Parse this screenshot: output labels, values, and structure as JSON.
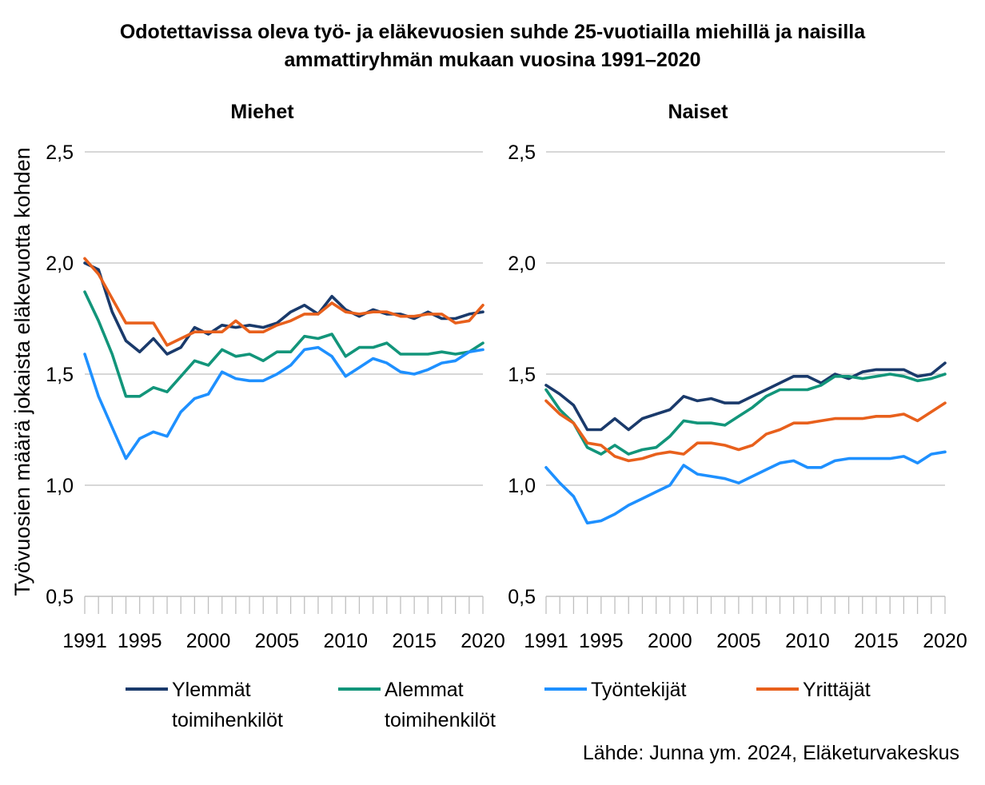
{
  "title_line1": "Odotettavissa oleva työ- ja eläkevuosien suhde 25-vuotiailla miehillä ja naisilla",
  "title_line2": "ammattiryhmän mukaan vuosina 1991–2020",
  "source": "Lähde: Junna ym. 2024, Eläketurvakeskus",
  "legend": [
    {
      "line1": "Ylemmät",
      "line2": "toimihenkilöt",
      "color": "#1a3a6b"
    },
    {
      "line1": "Alemmat",
      "line2": "toimihenkilöt",
      "color": "#12957a"
    },
    {
      "line1": "Työntekijät",
      "line2": "",
      "color": "#1e90ff"
    },
    {
      "line1": "Yrittäjät",
      "line2": "",
      "color": "#e8601c"
    }
  ],
  "chart_data": [
    {
      "type": "line",
      "title": "Miehet",
      "ylabel": "Työvuosien määrä jokaista eläkevuotta kohden",
      "ylim": [
        0.5,
        2.5
      ],
      "yticks": [
        "0,5",
        "1,0",
        "1,5",
        "2,0",
        "2,5"
      ],
      "xticks": [
        "1991",
        "1995",
        "2000",
        "2005",
        "2010",
        "2015",
        "2020"
      ],
      "x": [
        1991,
        1992,
        1993,
        1994,
        1995,
        1996,
        1997,
        1998,
        1999,
        2000,
        2001,
        2002,
        2003,
        2004,
        2005,
        2006,
        2007,
        2008,
        2009,
        2010,
        2011,
        2012,
        2013,
        2014,
        2015,
        2016,
        2017,
        2018,
        2019,
        2020
      ],
      "series": [
        {
          "name": "Ylemmät toimihenkilöt",
          "color": "#1a3a6b",
          "values": [
            2.0,
            1.97,
            1.78,
            1.65,
            1.6,
            1.66,
            1.59,
            1.62,
            1.71,
            1.68,
            1.72,
            1.71,
            1.72,
            1.71,
            1.73,
            1.78,
            1.81,
            1.77,
            1.85,
            1.79,
            1.76,
            1.79,
            1.77,
            1.77,
            1.75,
            1.78,
            1.75,
            1.75,
            1.77,
            1.78
          ]
        },
        {
          "name": "Alemmat toimihenkilöt",
          "color": "#12957a",
          "values": [
            1.87,
            1.74,
            1.59,
            1.4,
            1.4,
            1.44,
            1.42,
            1.49,
            1.56,
            1.54,
            1.61,
            1.58,
            1.59,
            1.56,
            1.6,
            1.6,
            1.67,
            1.66,
            1.68,
            1.58,
            1.62,
            1.62,
            1.64,
            1.59,
            1.59,
            1.59,
            1.6,
            1.59,
            1.6,
            1.64
          ]
        },
        {
          "name": "Työntekijät",
          "color": "#1e90ff",
          "values": [
            1.59,
            1.4,
            1.26,
            1.12,
            1.21,
            1.24,
            1.22,
            1.33,
            1.39,
            1.41,
            1.51,
            1.48,
            1.47,
            1.47,
            1.5,
            1.54,
            1.61,
            1.62,
            1.58,
            1.49,
            1.53,
            1.57,
            1.55,
            1.51,
            1.5,
            1.52,
            1.55,
            1.56,
            1.6,
            1.61
          ]
        },
        {
          "name": "Yrittäjät",
          "color": "#e8601c",
          "values": [
            2.02,
            1.95,
            1.84,
            1.73,
            1.73,
            1.73,
            1.63,
            1.66,
            1.69,
            1.69,
            1.69,
            1.74,
            1.69,
            1.69,
            1.72,
            1.74,
            1.77,
            1.77,
            1.82,
            1.78,
            1.77,
            1.78,
            1.78,
            1.76,
            1.76,
            1.77,
            1.77,
            1.73,
            1.74,
            1.81
          ]
        }
      ]
    },
    {
      "type": "line",
      "title": "Naiset",
      "ylim": [
        0.5,
        2.5
      ],
      "yticks": [
        "0,5",
        "1,0",
        "1,5",
        "2,0",
        "2,5"
      ],
      "xticks": [
        "1991",
        "1995",
        "2000",
        "2005",
        "2010",
        "2015",
        "2020"
      ],
      "x": [
        1991,
        1992,
        1993,
        1994,
        1995,
        1996,
        1997,
        1998,
        1999,
        2000,
        2001,
        2002,
        2003,
        2004,
        2005,
        2006,
        2007,
        2008,
        2009,
        2010,
        2011,
        2012,
        2013,
        2014,
        2015,
        2016,
        2017,
        2018,
        2019,
        2020
      ],
      "series": [
        {
          "name": "Ylemmät toimihenkilöt",
          "color": "#1a3a6b",
          "values": [
            1.45,
            1.41,
            1.36,
            1.25,
            1.25,
            1.3,
            1.25,
            1.3,
            1.32,
            1.34,
            1.4,
            1.38,
            1.39,
            1.37,
            1.37,
            1.4,
            1.43,
            1.46,
            1.49,
            1.49,
            1.46,
            1.5,
            1.48,
            1.51,
            1.52,
            1.52,
            1.52,
            1.49,
            1.5,
            1.55
          ]
        },
        {
          "name": "Alemmat toimihenkilöt",
          "color": "#12957a",
          "values": [
            1.43,
            1.34,
            1.28,
            1.17,
            1.14,
            1.18,
            1.14,
            1.16,
            1.17,
            1.22,
            1.29,
            1.28,
            1.28,
            1.27,
            1.31,
            1.35,
            1.4,
            1.43,
            1.43,
            1.43,
            1.45,
            1.49,
            1.49,
            1.48,
            1.49,
            1.5,
            1.49,
            1.47,
            1.48,
            1.5
          ]
        },
        {
          "name": "Työntekijät",
          "color": "#1e90ff",
          "values": [
            1.08,
            1.01,
            0.95,
            0.83,
            0.84,
            0.87,
            0.91,
            0.94,
            0.97,
            1.0,
            1.09,
            1.05,
            1.04,
            1.03,
            1.01,
            1.04,
            1.07,
            1.1,
            1.11,
            1.08,
            1.08,
            1.11,
            1.12,
            1.12,
            1.12,
            1.12,
            1.13,
            1.1,
            1.14,
            1.15
          ]
        },
        {
          "name": "Yrittäjät",
          "color": "#e8601c",
          "values": [
            1.38,
            1.32,
            1.28,
            1.19,
            1.18,
            1.13,
            1.11,
            1.12,
            1.14,
            1.15,
            1.14,
            1.19,
            1.19,
            1.18,
            1.16,
            1.18,
            1.23,
            1.25,
            1.28,
            1.28,
            1.29,
            1.3,
            1.3,
            1.3,
            1.31,
            1.31,
            1.32,
            1.29,
            1.33,
            1.37
          ]
        }
      ]
    }
  ]
}
